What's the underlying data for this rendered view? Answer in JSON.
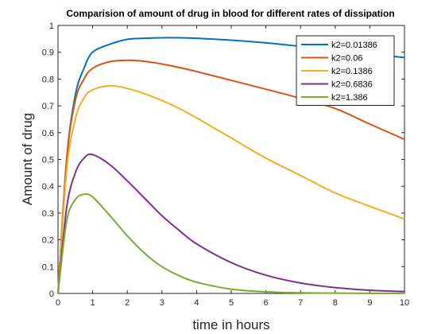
{
  "chart_data": {
    "type": "line",
    "title": "Comparision of amount of drug in blood for different rates of dissipation",
    "xlabel": "time in hours",
    "ylabel": "Amount of drug",
    "xlim": [
      0,
      10
    ],
    "ylim": [
      0,
      1
    ],
    "xticks": [
      "0",
      "1",
      "2",
      "3",
      "4",
      "5",
      "6",
      "7",
      "8",
      "9",
      "10"
    ],
    "yticks": [
      "0",
      "0.1",
      "0.2",
      "0.3",
      "0.4",
      "0.5",
      "0.6",
      "0.7",
      "0.8",
      "0.9",
      "1"
    ],
    "grid": false,
    "legend_position": "top-right",
    "x": [
      0,
      0.25,
      0.5,
      0.75,
      1,
      1.5,
      2,
      2.5,
      3,
      3.5,
      4,
      5,
      6,
      7,
      8,
      9,
      10
    ],
    "series": [
      {
        "name": "k2=0.01386",
        "color": "#0072BD",
        "values": [
          0,
          0.5,
          0.74,
          0.84,
          0.9,
          0.93,
          0.948,
          0.952,
          0.954,
          0.954,
          0.952,
          0.945,
          0.935,
          0.922,
          0.908,
          0.894,
          0.88
        ]
      },
      {
        "name": "k2=0.06",
        "color": "#D95319",
        "values": [
          0,
          0.5,
          0.72,
          0.8,
          0.84,
          0.865,
          0.87,
          0.866,
          0.856,
          0.843,
          0.828,
          0.795,
          0.762,
          0.728,
          0.69,
          0.632,
          0.575
        ]
      },
      {
        "name": "k2=0.1386",
        "color": "#EDB120",
        "values": [
          0,
          0.46,
          0.65,
          0.73,
          0.76,
          0.775,
          0.765,
          0.745,
          0.72,
          0.69,
          0.655,
          0.58,
          0.505,
          0.44,
          0.375,
          0.325,
          0.278
        ]
      },
      {
        "name": "k2=0.6836",
        "color": "#7E2F8E",
        "values": [
          0,
          0.32,
          0.45,
          0.505,
          0.518,
          0.48,
          0.42,
          0.355,
          0.29,
          0.235,
          0.185,
          0.115,
          0.068,
          0.039,
          0.022,
          0.012,
          0.007
        ]
      },
      {
        "name": "k2=1.386",
        "color": "#77AC30",
        "values": [
          0,
          0.27,
          0.35,
          0.37,
          0.36,
          0.29,
          0.215,
          0.15,
          0.1,
          0.066,
          0.042,
          0.016,
          0.006,
          0.0025,
          0.001,
          0.0005,
          0.0002
        ]
      }
    ]
  }
}
